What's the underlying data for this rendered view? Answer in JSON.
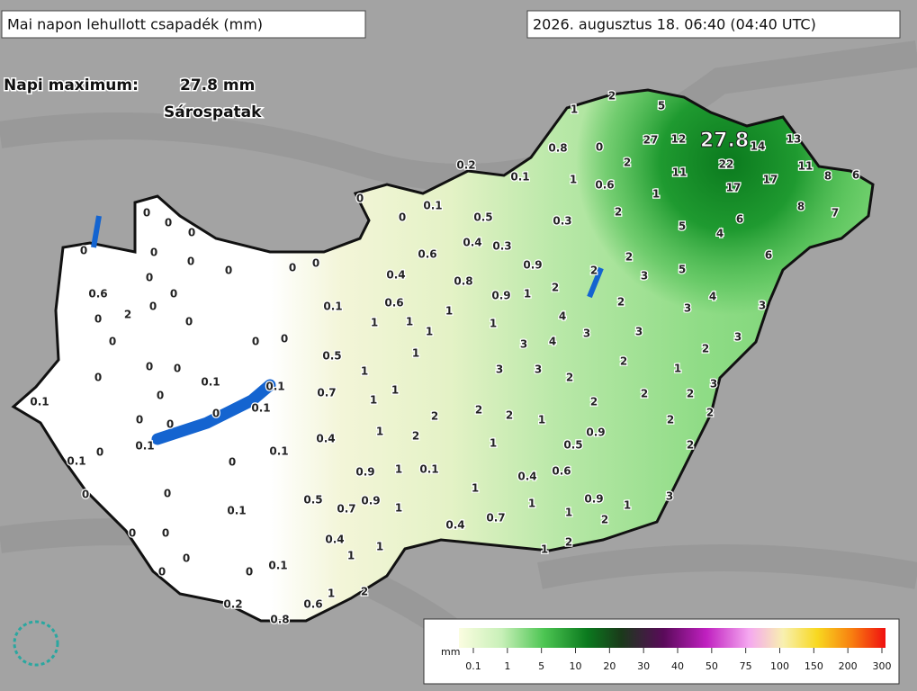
{
  "header": {
    "title": "Mai napon lehullott csapadék (mm)",
    "timestamp": "2026. augusztus 18. 06:40 (04:40 UTC)"
  },
  "max": {
    "label": "Napi maximum:",
    "value": "27.8 mm",
    "station": "Sárospatak",
    "map_value": 27.8
  },
  "stations": [
    2,
    5,
    1,
    0.8,
    0,
    27,
    12,
    14,
    13,
    2,
    22,
    11,
    11,
    8,
    6,
    17,
    17,
    0.2,
    0.1,
    1,
    0.6,
    1,
    8,
    7,
    0,
    0.1,
    0.5,
    0.3,
    2,
    6,
    5,
    4,
    0,
    0,
    0,
    0,
    0.4,
    0.3,
    6,
    0,
    0,
    0,
    0,
    0,
    0,
    0.6,
    0.9,
    2,
    5,
    0.4,
    0.8,
    2,
    3,
    0.6,
    0,
    0,
    0.9,
    1,
    2,
    4,
    0.6,
    2,
    3,
    0.1,
    1,
    3,
    0,
    2,
    0,
    0,
    1,
    1,
    1,
    4,
    0,
    0,
    0,
    1,
    3,
    3,
    3,
    4,
    3,
    0.5,
    1,
    2,
    0,
    0,
    0,
    1,
    3,
    3,
    2,
    1,
    0.1,
    0.1,
    0.7,
    1,
    1,
    2,
    3,
    0.1,
    0,
    0.1,
    2,
    2,
    2,
    2,
    2,
    0,
    0,
    0,
    2,
    1,
    2,
    2,
    0.4,
    0.1,
    0,
    1,
    2,
    1,
    0.5,
    0.9,
    2,
    0.1,
    0,
    0.1,
    0.9,
    1,
    0.1,
    0.4,
    0.6,
    0,
    0,
    0.5,
    0.7,
    0.9,
    1,
    1,
    1,
    0.9,
    1,
    3,
    0.1,
    0.4,
    0.7,
    1,
    2,
    0,
    0,
    0.4,
    1,
    1,
    2,
    1,
    0,
    0.1,
    0,
    0,
    2,
    1,
    0.6,
    0.2,
    0.8
  ],
  "legend": {
    "unit": "mm",
    "ticks": [
      0.1,
      1,
      5,
      10,
      20,
      30,
      40,
      50,
      75,
      100,
      150,
      200,
      300
    ]
  }
}
